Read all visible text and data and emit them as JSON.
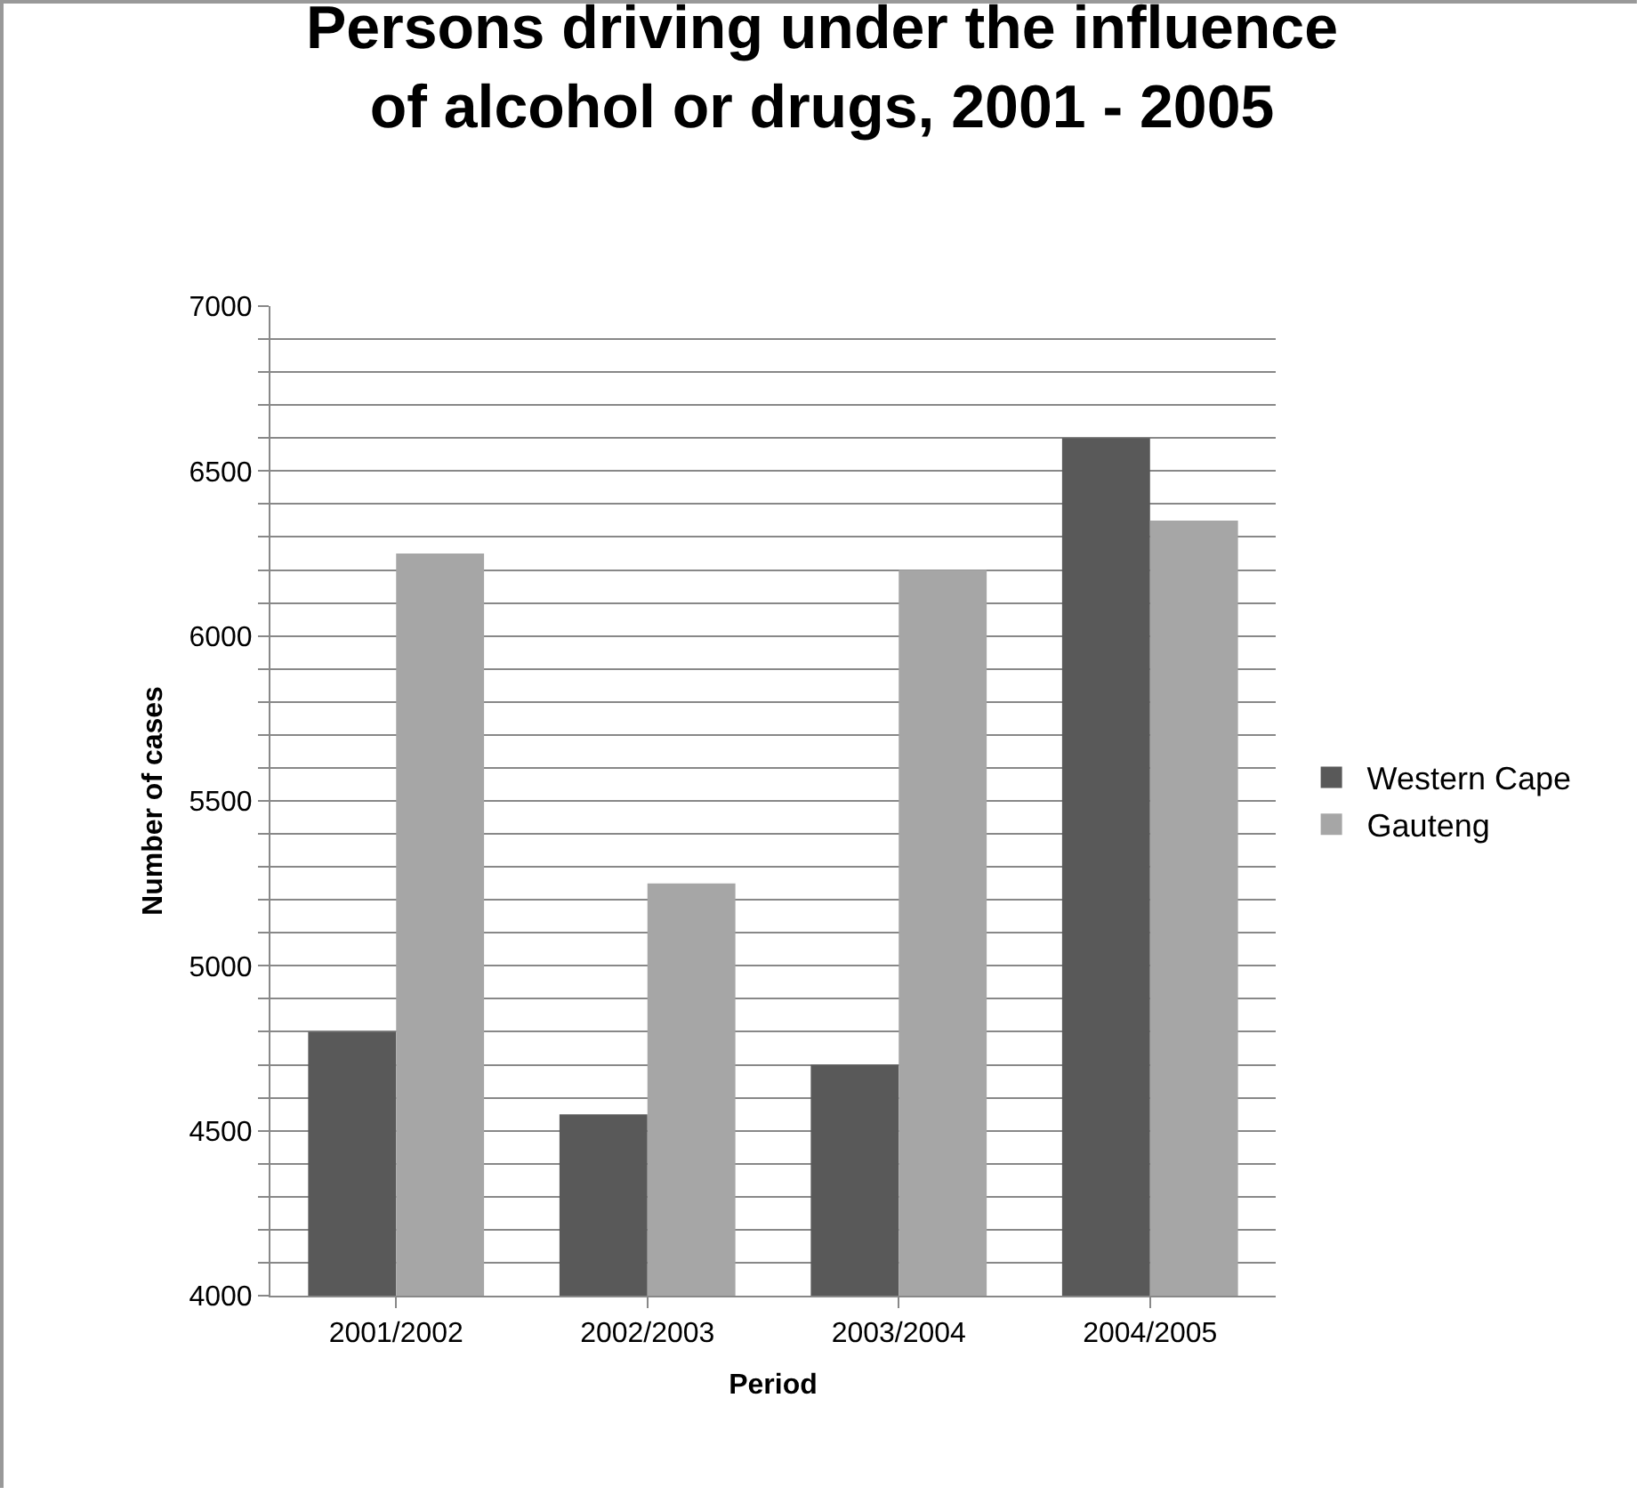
{
  "chart_data": {
    "type": "bar",
    "title": "Persons driving under the influence\nof alcohol or drugs, 2001 - 2005",
    "xlabel": "Period",
    "ylabel": "Number of cases",
    "categories": [
      "2001/2002",
      "2002/2003",
      "2003/2004",
      "2004/2005"
    ],
    "series": [
      {
        "name": "Western Cape",
        "color": "#595959",
        "values": [
          4800,
          4550,
          4700,
          6600
        ]
      },
      {
        "name": "Gauteng",
        "color": "#a6a6a6",
        "values": [
          6250,
          5250,
          6200,
          6350
        ]
      }
    ],
    "ylim": [
      4000,
      7000
    ],
    "yticks": [
      4000,
      {
        "value": 4100,
        "label": null
      },
      {
        "value": 4200,
        "label": null
      },
      {
        "value": 4300,
        "label": null
      },
      {
        "value": 4400,
        "label": null
      },
      4500,
      {
        "value": 4600,
        "label": null
      },
      {
        "value": 4700,
        "label": null
      },
      {
        "value": 4800,
        "label": null
      },
      {
        "value": 4900,
        "label": null
      },
      5000,
      {
        "value": 5100,
        "label": null
      },
      {
        "value": 5200,
        "label": null
      },
      {
        "value": 5300,
        "label": null
      },
      {
        "value": 5400,
        "label": null
      },
      5500,
      {
        "value": 5600,
        "label": null
      },
      {
        "value": 5700,
        "label": null
      },
      {
        "value": 5800,
        "label": null
      },
      {
        "value": 5900,
        "label": null
      },
      6000,
      {
        "value": 6100,
        "label": null
      },
      {
        "value": 6200,
        "label": null
      },
      {
        "value": 6300,
        "label": null
      },
      {
        "value": 6400,
        "label": null
      },
      6500,
      {
        "value": 6600,
        "label": null
      },
      {
        "value": 6700,
        "label": null
      },
      {
        "value": 6800,
        "label": null
      },
      {
        "value": 6900,
        "label": null
      },
      7000
    ],
    "grid": "y",
    "legend": "right"
  }
}
